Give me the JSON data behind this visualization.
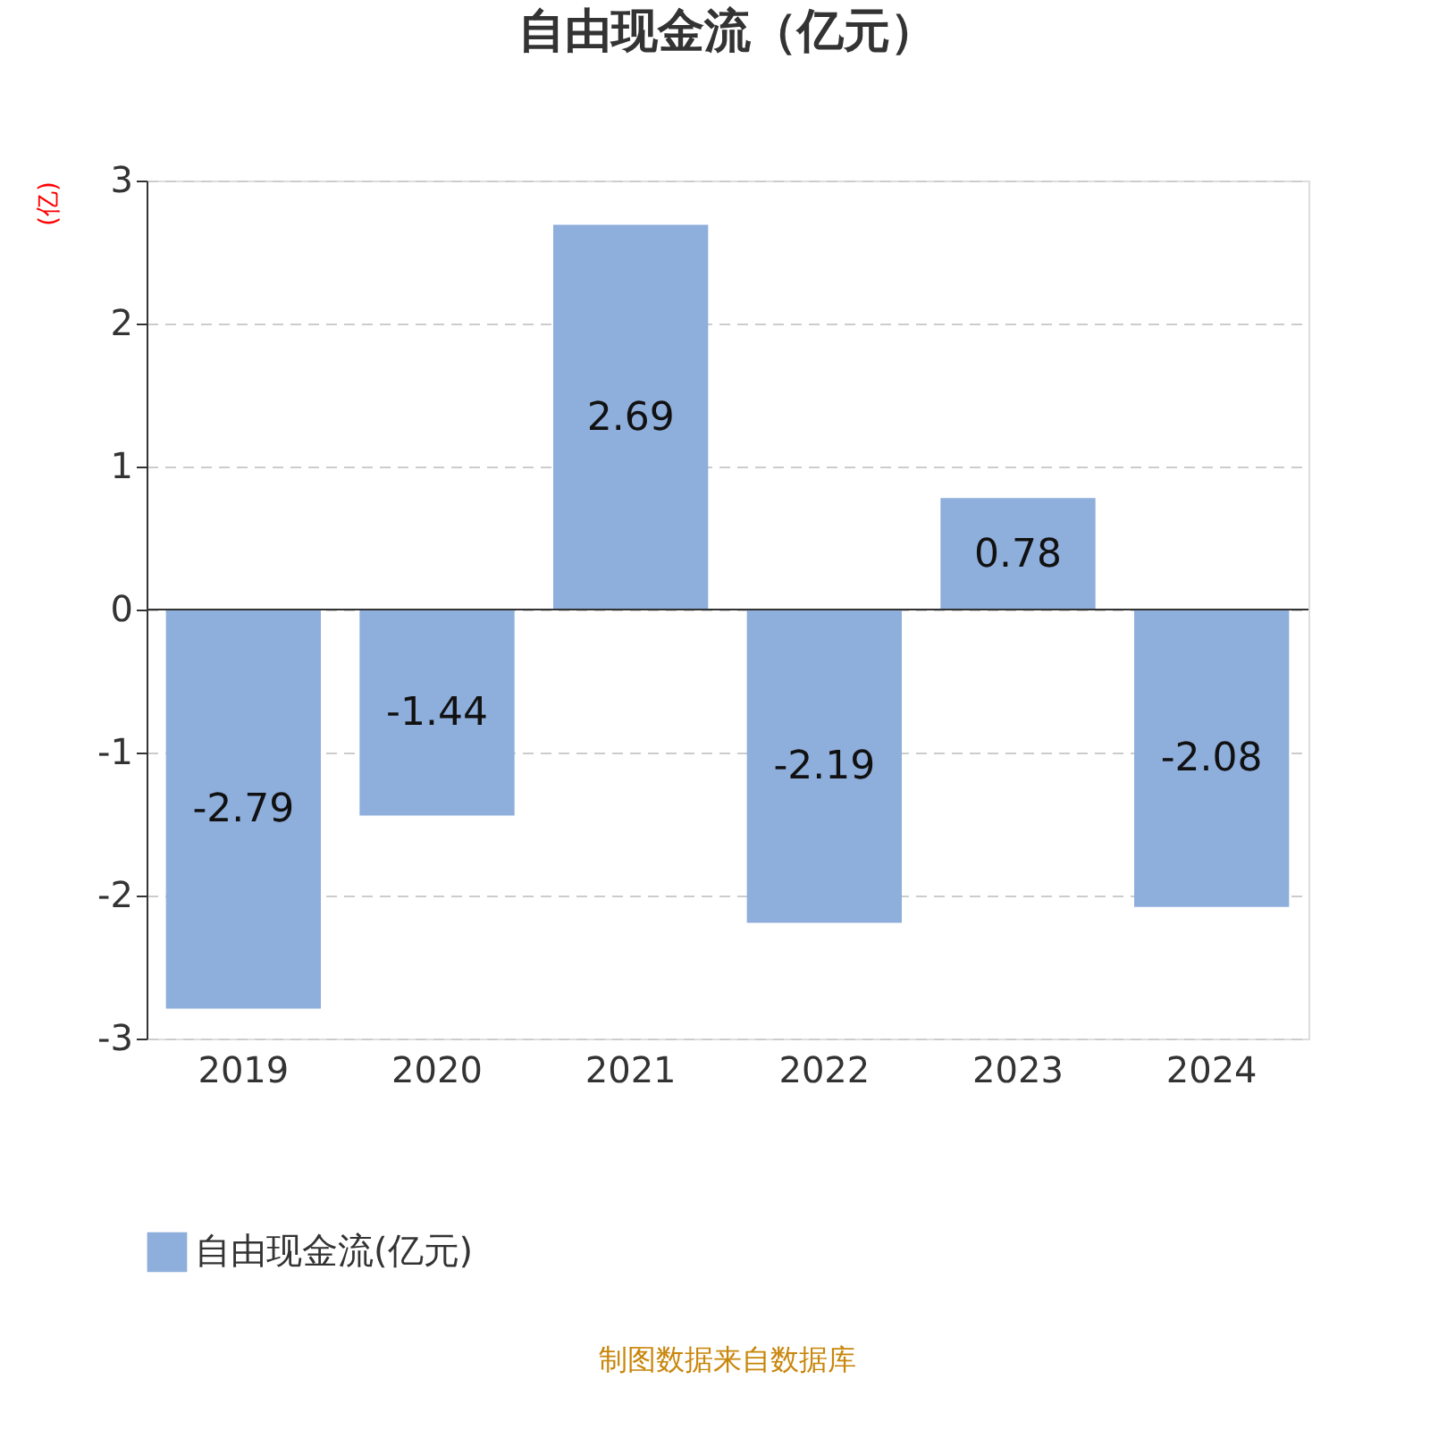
{
  "chart_data": {
    "type": "bar",
    "title": "自由现金流（亿元）",
    "ylabel": "(亿)",
    "categories": [
      "2019",
      "2020",
      "2021",
      "2022",
      "2023",
      "2024"
    ],
    "series": [
      {
        "name": "自由现金流(亿元)",
        "color": "#8eaedb",
        "values": [
          -2.79,
          -1.44,
          2.69,
          -2.19,
          0.78,
          -2.08
        ]
      }
    ],
    "ylim": [
      -3,
      3
    ],
    "yticks": [
      -3,
      -2,
      -1,
      0,
      1,
      2,
      3
    ],
    "grid": "y",
    "legend": "bottom",
    "data_labels": true,
    "annotations": [
      "制图数据来自数据库"
    ]
  }
}
